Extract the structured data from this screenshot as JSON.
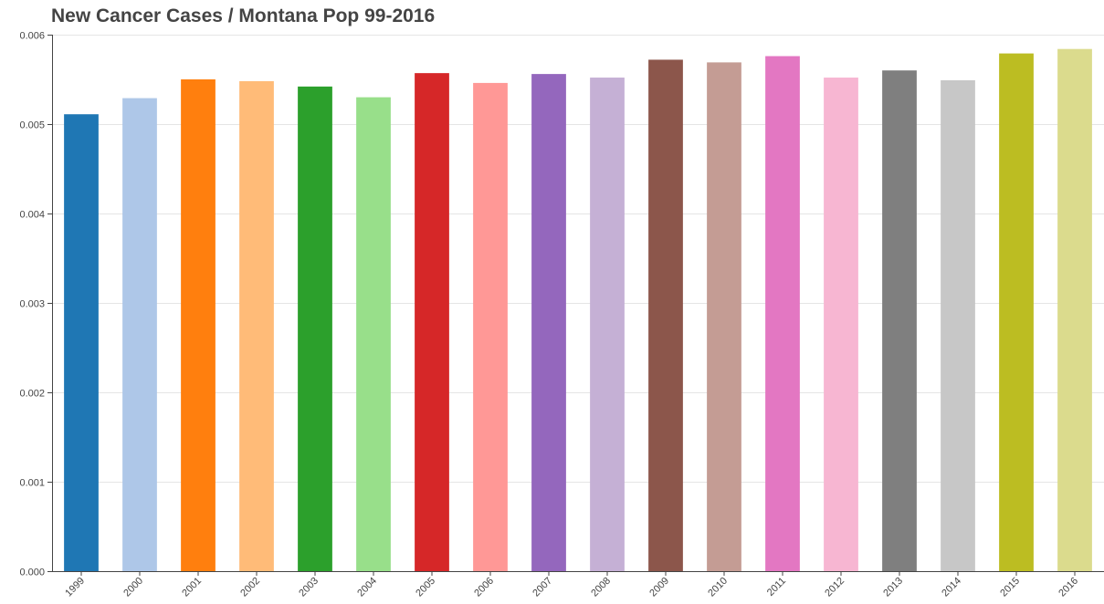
{
  "chart_data": {
    "type": "bar",
    "title": "New Cancer Cases / Montana Pop 99-2016",
    "xlabel": "",
    "ylabel": "",
    "ylim": [
      0,
      0.006
    ],
    "yticks": [
      "0.000",
      "0.001",
      "0.002",
      "0.003",
      "0.004",
      "0.005",
      "0.006"
    ],
    "grid": "horizontal",
    "categories": [
      "1999",
      "2000",
      "2001",
      "2002",
      "2003",
      "2004",
      "2005",
      "2006",
      "2007",
      "2008",
      "2009",
      "2010",
      "2011",
      "2012",
      "2013",
      "2014",
      "2015",
      "2016"
    ],
    "values": [
      0.00511,
      0.00529,
      0.0055,
      0.00548,
      0.00542,
      0.0053,
      0.00557,
      0.00546,
      0.00556,
      0.00552,
      0.00572,
      0.00569,
      0.00576,
      0.00552,
      0.0056,
      0.00549,
      0.00579,
      0.00584
    ],
    "colors": [
      "#1f77b4",
      "#aec7e8",
      "#ff7f0e",
      "#ffbb78",
      "#2ca02c",
      "#98df8a",
      "#d62728",
      "#ff9896",
      "#9467bd",
      "#c5b0d5",
      "#8c564b",
      "#c49c94",
      "#e377c2",
      "#f7b6d2",
      "#7f7f7f",
      "#c7c7c7",
      "#bcbd22",
      "#dbdb8d"
    ]
  }
}
